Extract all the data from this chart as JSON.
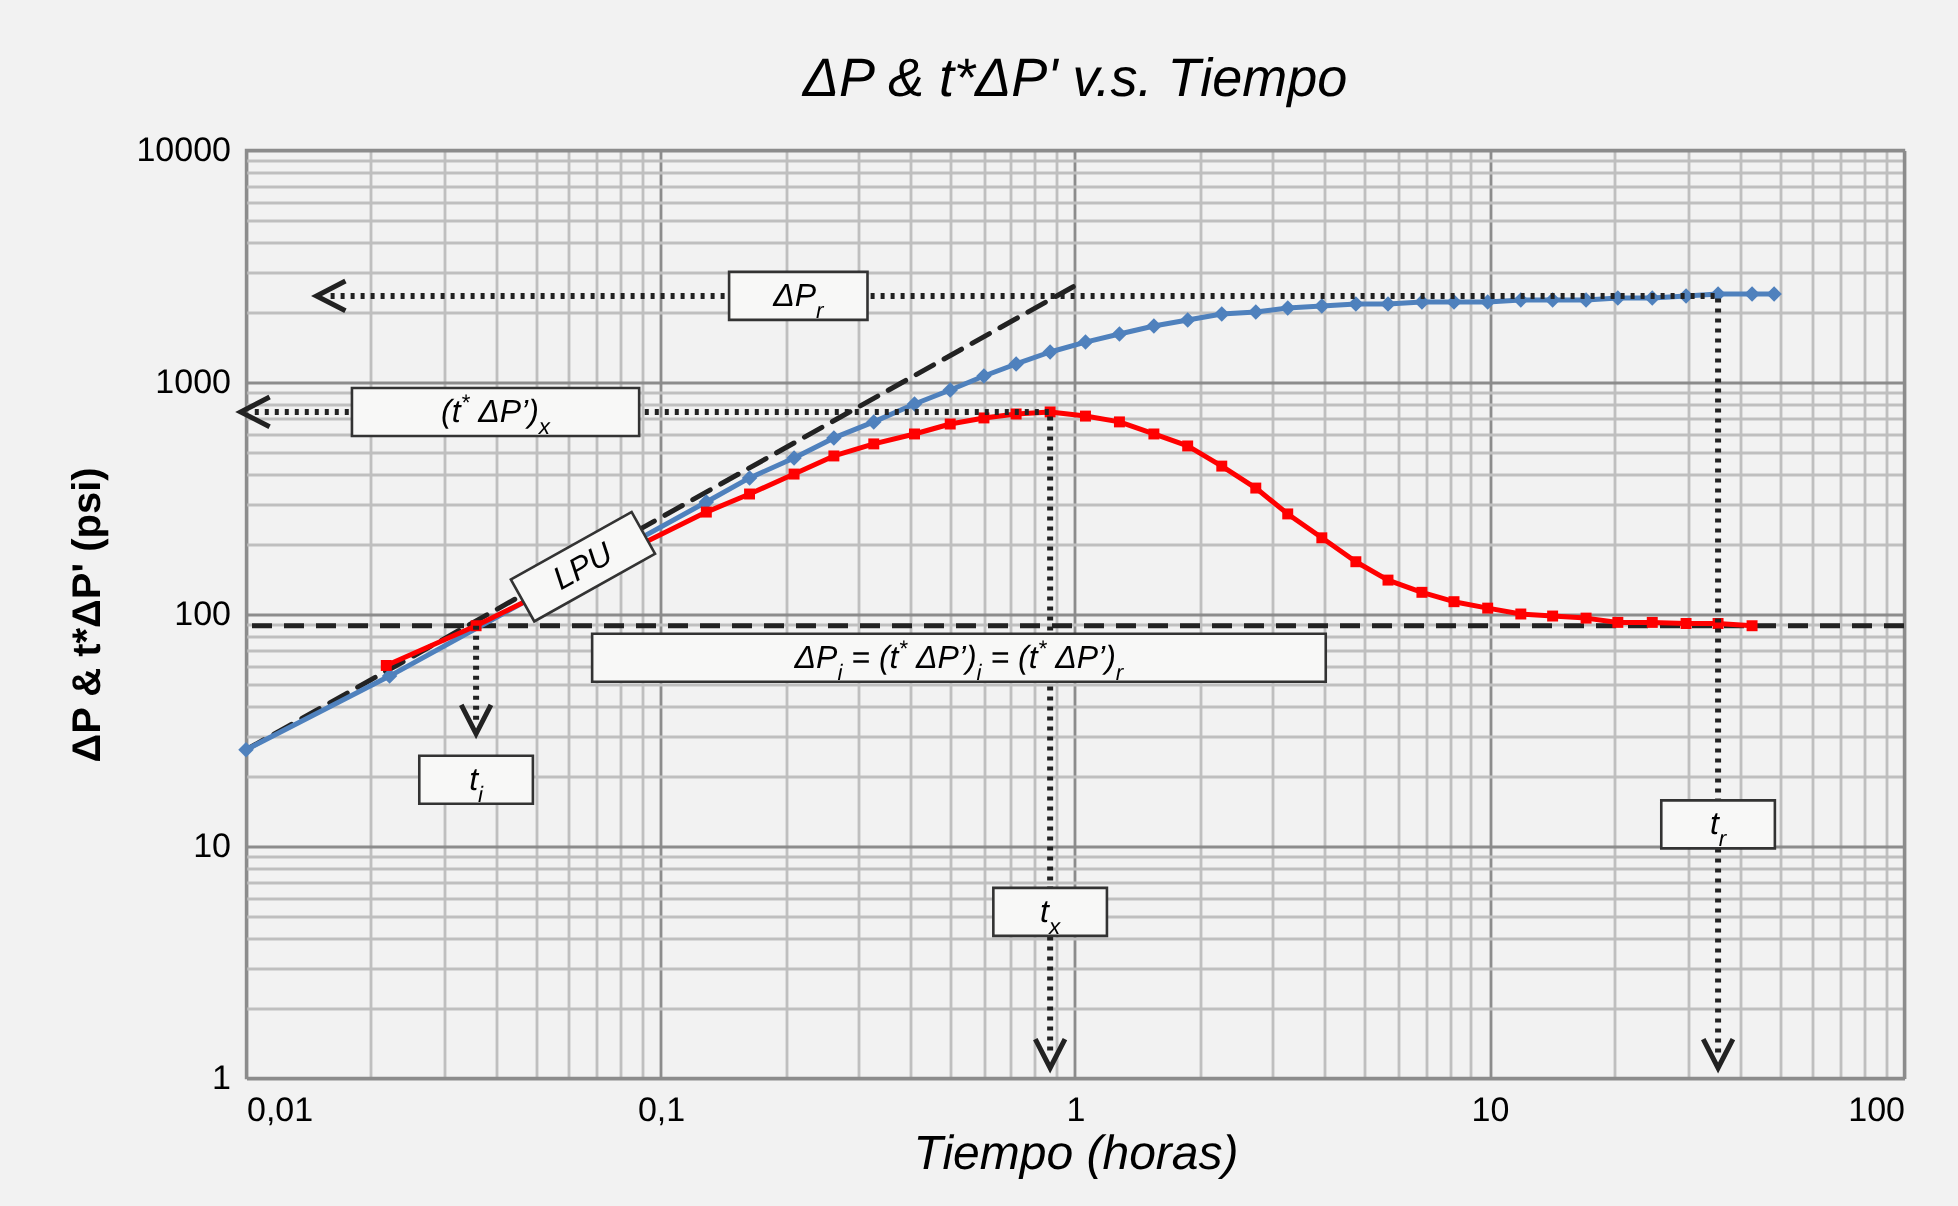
{
  "chart_data": {
    "type": "line",
    "title": "ΔP & t*ΔP' v.s. Tiempo",
    "xlabel": "Tiempo (horas)",
    "ylabel": "ΔP & t*ΔP' (psi)",
    "log": "xy",
    "grid": true,
    "xlim": [
      0.01,
      100
    ],
    "ylim": [
      1,
      10000
    ],
    "xticks": [
      {
        "value": 0.01,
        "label": "0,01"
      },
      {
        "value": 0.02,
        "label": null
      },
      {
        "value": 0.03,
        "label": null
      },
      {
        "value": 0.04,
        "label": null
      },
      {
        "value": 0.05,
        "label": null
      },
      {
        "value": 0.06,
        "label": null
      },
      {
        "value": 0.07,
        "label": null
      },
      {
        "value": 0.08,
        "label": null
      },
      {
        "value": 0.09,
        "label": null
      },
      {
        "value": 0.1,
        "label": "0,1"
      },
      {
        "value": 0.2,
        "label": null
      },
      {
        "value": 0.3,
        "label": null
      },
      {
        "value": 0.4,
        "label": null
      },
      {
        "value": 0.5,
        "label": null
      },
      {
        "value": 0.6,
        "label": null
      },
      {
        "value": 0.7,
        "label": null
      },
      {
        "value": 0.8,
        "label": null
      },
      {
        "value": 0.9,
        "label": null
      },
      1,
      {
        "value": 2,
        "label": null
      },
      {
        "value": 3,
        "label": null
      },
      {
        "value": 4,
        "label": null
      },
      {
        "value": 5,
        "label": null
      },
      {
        "value": 6,
        "label": null
      },
      {
        "value": 7,
        "label": null
      },
      {
        "value": 8,
        "label": null
      },
      {
        "value": 9,
        "label": null
      },
      10,
      {
        "value": 20,
        "label": null
      },
      {
        "value": 30,
        "label": null
      },
      {
        "value": 40,
        "label": null
      },
      {
        "value": 50,
        "label": null
      },
      {
        "value": 60,
        "label": null
      },
      {
        "value": 70,
        "label": null
      },
      {
        "value": 80,
        "label": null
      },
      {
        "value": 90,
        "label": null
      },
      100
    ],
    "yticks": [
      1,
      {
        "value": 2,
        "label": null
      },
      {
        "value": 3,
        "label": null
      },
      {
        "value": 4,
        "label": null
      },
      {
        "value": 5,
        "label": null
      },
      {
        "value": 6,
        "label": null
      },
      {
        "value": 7,
        "label": null
      },
      {
        "value": 8,
        "label": null
      },
      {
        "value": 9,
        "label": null
      },
      10,
      {
        "value": 20,
        "label": null
      },
      {
        "value": 30,
        "label": null
      },
      {
        "value": 40,
        "label": null
      },
      {
        "value": 50,
        "label": null
      },
      {
        "value": 60,
        "label": null
      },
      {
        "value": 70,
        "label": null
      },
      {
        "value": 80,
        "label": null
      },
      {
        "value": 90,
        "label": null
      },
      100,
      {
        "value": 200,
        "label": null
      },
      {
        "value": 300,
        "label": null
      },
      {
        "value": 400,
        "label": null
      },
      {
        "value": 500,
        "label": null
      },
      {
        "value": 600,
        "label": null
      },
      {
        "value": 700,
        "label": null
      },
      {
        "value": 800,
        "label": null
      },
      {
        "value": 900,
        "label": null
      },
      1000,
      {
        "value": 2000,
        "label": null
      },
      {
        "value": 3000,
        "label": null
      },
      {
        "value": 4000,
        "label": null
      },
      {
        "value": 5000,
        "label": null
      },
      {
        "value": 6000,
        "label": null
      },
      {
        "value": 7000,
        "label": null
      },
      {
        "value": 8000,
        "label": null
      },
      {
        "value": 9000,
        "label": null
      },
      10000
    ],
    "series": [
      {
        "color": "#222222",
        "line_style": "dashed",
        "x": [
          0.01,
          1
        ],
        "values": [
          26,
          2600
        ]
      },
      {
        "color": "#4f81bd",
        "marker": "diamond",
        "line_style": "solid",
        "x": [
          0.01,
          0.0222,
          0.129,
          0.164,
          0.21,
          0.262,
          0.327,
          0.41,
          0.5,
          0.603,
          0.721,
          0.871,
          1.06,
          1.28,
          1.55,
          1.87,
          2.26,
          2.73,
          3.26,
          3.94,
          4.76,
          5.69,
          6.87,
          8.21,
          9.9,
          11.9,
          14.2,
          17.1,
          20.4,
          24.7,
          29.8,
          35.6,
          43,
          48.6
        ],
        "values": [
          26,
          54,
          304,
          386,
          470,
          574,
          673,
          804,
          924,
          1061,
          1196,
          1347,
          1486,
          1610,
          1743,
          1850,
          1963,
          2003,
          2085,
          2128,
          2170,
          2170,
          2214,
          2214,
          2214,
          2256,
          2256,
          2256,
          2302,
          2302,
          2349,
          2395,
          2395,
          2395
        ]
      },
      {
        "color": "#ff0000",
        "marker": "square",
        "line_style": "solid",
        "x": [
          0.0218,
          0.0359,
          0.129,
          0.164,
          0.21,
          0.262,
          0.327,
          0.41,
          0.5,
          0.603,
          0.721,
          0.871,
          1.06,
          1.28,
          1.55,
          1.87,
          2.26,
          2.73,
          3.26,
          3.94,
          4.76,
          5.69,
          6.87,
          8.21,
          9.9,
          11.9,
          14.2,
          17.1,
          20.4,
          24.7,
          29.8,
          35.6,
          43
        ],
        "values": [
          60,
          89,
          275,
          329,
          401,
          480,
          541,
          597,
          659,
          700,
          728,
          743,
          713,
          673,
          597,
          530,
          434,
          349,
          270,
          213,
          168,
          140,
          124,
          113,
          106,
          100,
          98,
          96,
          92,
          92,
          91,
          91,
          89
        ]
      },
      {
        "color": "#222222",
        "line_style": "dotted",
        "x": [
          0.016,
          35.6,
          35.6
        ],
        "values": [
          2350,
          2350,
          1.27
        ]
      },
      {
        "color": "#222222",
        "line_style": "dotted",
        "x": [
          0.0105,
          0.871,
          0.871
        ],
        "values": [
          743,
          743,
          1.27
        ]
      },
      {
        "color": "#222222",
        "line_style": "dotted",
        "x": [
          0.0359,
          0.0359
        ],
        "values": [
          89,
          35
        ]
      }
    ],
    "ref_lines": [
      {
        "axis": "y",
        "value": 89,
        "color": "#222222",
        "line_style": "dashed",
        "label": "ΔP$_{i}$ = (t$^{*}$ ΔP’)$_{i}$ = (t$^{*}$ ΔP’)$_{r}$"
      }
    ],
    "annotations": [
      {
        "text": "ΔP$_{r}$",
        "x": 0.215,
        "y": 2350
      },
      {
        "text": "(t$^{*}$ ΔP’)$_{x}$",
        "x": 0.04,
        "y": 743
      },
      {
        "text": "LPU",
        "x": 0.065,
        "y": 160
      },
      {
        "text": "t$_{i}$",
        "x": 0.0359,
        "y": 35
      },
      {
        "text": "t$_{x}$",
        "x": 0.871,
        "y": 5.2
      },
      {
        "text": "t$_{r}$",
        "x": 35.6,
        "y": 12.4
      }
    ]
  }
}
